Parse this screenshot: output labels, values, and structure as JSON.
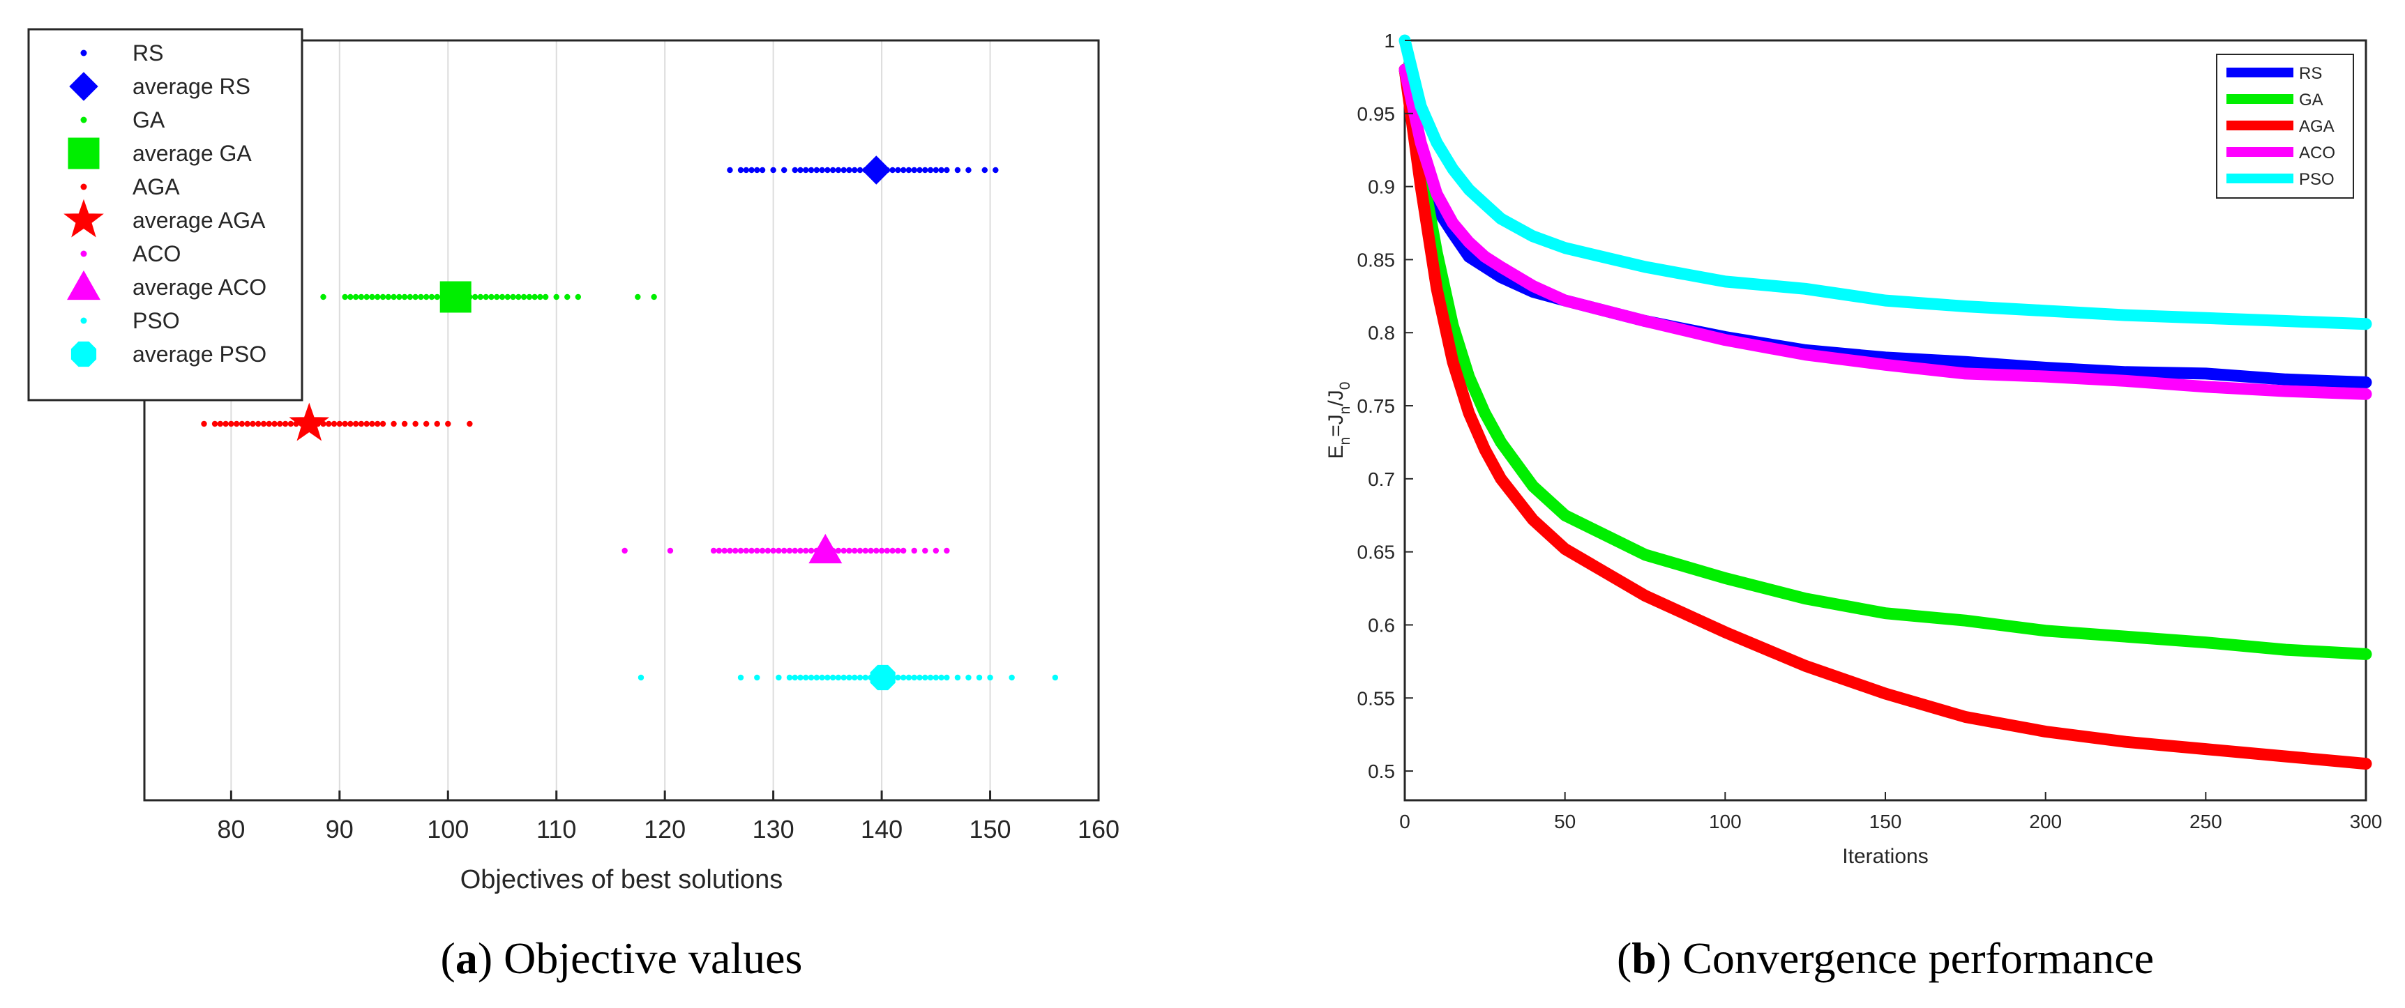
{
  "chart_data": [
    {
      "type": "scatter",
      "panel": "a",
      "caption_letter": "a",
      "caption_text": "Objective values",
      "xlabel": "Objectives of best solutions",
      "xlim": [
        72,
        160
      ],
      "xticks": [
        80,
        90,
        100,
        110,
        120,
        130,
        140,
        150,
        160
      ],
      "xgrid": true,
      "legend_position": "top-left",
      "series": [
        {
          "name": "RS",
          "avg_name": "average RS",
          "color": "#0000ff",
          "avg_marker": "diamond",
          "row": 1,
          "points": [
            126,
            127,
            127.5,
            128,
            128.5,
            129,
            130,
            131,
            132,
            132.5,
            133,
            133.5,
            134,
            134.5,
            135,
            135.5,
            136,
            136.5,
            137,
            137.5,
            138,
            138.5,
            139,
            139.5,
            140,
            140.5,
            141,
            141.5,
            142,
            142.5,
            143,
            143.5,
            144,
            144.5,
            145,
            145.5,
            146,
            147,
            148,
            149.5,
            150.5
          ],
          "average": 139.5
        },
        {
          "name": "GA",
          "avg_name": "average GA",
          "color": "#00ee00",
          "avg_marker": "square",
          "row": 2,
          "points": [
            88.5,
            90.5,
            91,
            91.5,
            92,
            92.5,
            93,
            93.5,
            94,
            94.5,
            95,
            95.5,
            96,
            96.5,
            97,
            97.5,
            98,
            98.5,
            99,
            99.5,
            100,
            100.5,
            101,
            101.5,
            102,
            102.5,
            103,
            103.5,
            104,
            104.5,
            105,
            105.5,
            106,
            106.5,
            107,
            107.5,
            108,
            108.5,
            109,
            110,
            111,
            112,
            117.5,
            119
          ],
          "average": 100.7
        },
        {
          "name": "AGA",
          "avg_name": "average AGA",
          "color": "#ff0000",
          "avg_marker": "star",
          "row": 3,
          "points": [
            77.5,
            78.5,
            79,
            79.5,
            80,
            80.5,
            81,
            81.5,
            82,
            82.5,
            83,
            83.5,
            84,
            84.5,
            85,
            85.5,
            86,
            86.5,
            87,
            87.5,
            88,
            88.5,
            89,
            89.5,
            90,
            90.5,
            91,
            91.5,
            92,
            92.5,
            93,
            93.5,
            94,
            95,
            96,
            97,
            98,
            99,
            100,
            102
          ],
          "average": 87.2
        },
        {
          "name": "ACO",
          "avg_name": "average ACO",
          "color": "#ff00ff",
          "avg_marker": "triangle",
          "row": 4,
          "points": [
            116.3,
            120.5,
            124.5,
            125,
            125.5,
            126,
            126.5,
            127,
            127.5,
            128,
            128.5,
            129,
            129.5,
            130,
            130.5,
            131,
            131.5,
            132,
            132.5,
            133,
            133.5,
            134,
            134.5,
            135,
            135.5,
            136,
            136.5,
            137,
            137.5,
            138,
            138.5,
            139,
            139.5,
            140,
            140.5,
            141,
            141.5,
            142,
            143,
            144,
            145,
            146
          ],
          "average": 134.8
        },
        {
          "name": "PSO",
          "avg_name": "average PSO",
          "color": "#00ffff",
          "avg_marker": "octagon",
          "row": 5,
          "points": [
            117.8,
            127,
            128.5,
            130.5,
            131.5,
            132,
            132.5,
            133,
            133.5,
            134,
            134.5,
            135,
            135.5,
            136,
            136.5,
            137,
            137.5,
            138,
            138.5,
            139,
            139.5,
            140,
            140.5,
            141,
            141.5,
            142,
            142.5,
            143,
            143.5,
            144,
            144.5,
            145,
            145.5,
            146,
            147,
            148,
            149,
            150,
            152,
            156
          ],
          "average": 140.1
        }
      ]
    },
    {
      "type": "line",
      "panel": "b",
      "caption_letter": "b",
      "caption_text": "Convergence performance",
      "xlabel": "Iterations",
      "ylabel_main": "E",
      "ylabel_sub1": "n",
      "ylabel_eq": "=J",
      "ylabel_sub2": "n",
      "ylabel_slash": "/J",
      "ylabel_sub3": "0",
      "xlim": [
        0,
        300
      ],
      "ylim": [
        0.48,
        1.0
      ],
      "xticks": [
        0,
        50,
        100,
        150,
        200,
        250,
        300
      ],
      "yticks": [
        0.5,
        0.55,
        0.6,
        0.65,
        0.7,
        0.75,
        0.8,
        0.85,
        0.9,
        0.95,
        1
      ],
      "legend_position": "top-right",
      "x": [
        0,
        5,
        10,
        15,
        20,
        25,
        30,
        40,
        50,
        75,
        100,
        125,
        150,
        175,
        200,
        225,
        250,
        275,
        300
      ],
      "series": [
        {
          "name": "RS",
          "color": "#0000ff",
          "values": [
            0.98,
            0.915,
            0.885,
            0.868,
            0.852,
            0.845,
            0.838,
            0.828,
            0.822,
            0.808,
            0.797,
            0.788,
            0.783,
            0.78,
            0.776,
            0.773,
            0.772,
            0.768,
            0.766
          ]
        },
        {
          "name": "GA",
          "color": "#00ee00",
          "values": [
            0.98,
            0.915,
            0.855,
            0.805,
            0.77,
            0.745,
            0.725,
            0.695,
            0.675,
            0.648,
            0.632,
            0.618,
            0.608,
            0.603,
            0.596,
            0.592,
            0.588,
            0.583,
            0.58
          ]
        },
        {
          "name": "AGA",
          "color": "#ff0000",
          "values": [
            0.98,
            0.9,
            0.83,
            0.78,
            0.745,
            0.72,
            0.7,
            0.672,
            0.652,
            0.62,
            0.595,
            0.572,
            0.553,
            0.537,
            0.527,
            0.52,
            0.515,
            0.51,
            0.505
          ]
        },
        {
          "name": "ACO",
          "color": "#ff00ff",
          "values": [
            0.98,
            0.93,
            0.895,
            0.875,
            0.862,
            0.852,
            0.845,
            0.832,
            0.822,
            0.808,
            0.795,
            0.785,
            0.778,
            0.772,
            0.77,
            0.767,
            0.763,
            0.76,
            0.758
          ]
        },
        {
          "name": "PSO",
          "color": "#00ffff",
          "values": [
            1.0,
            0.955,
            0.93,
            0.912,
            0.898,
            0.888,
            0.878,
            0.866,
            0.858,
            0.845,
            0.835,
            0.83,
            0.822,
            0.818,
            0.815,
            0.812,
            0.81,
            0.808,
            0.806
          ]
        }
      ]
    }
  ]
}
